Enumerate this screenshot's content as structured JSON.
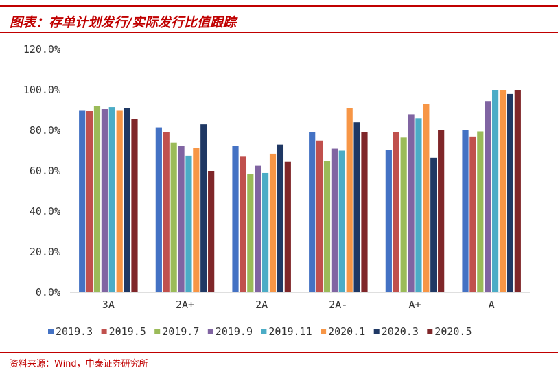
{
  "header": {
    "title": "图表：存单计划发行/实际发行比值跟踪"
  },
  "footer": {
    "source": "资料来源：Wind，中泰证券研究所"
  },
  "chart_data": {
    "type": "bar",
    "title": "图表：存单计划发行/实际发行比值跟踪",
    "xlabel": "",
    "ylabel": "",
    "ylim": [
      0,
      120
    ],
    "yticks": [
      "0.0%",
      "20.0%",
      "40.0%",
      "60.0%",
      "80.0%",
      "100.0%",
      "120.0%"
    ],
    "categories": [
      "3A",
      "2A+",
      "2A",
      "2A-",
      "A+",
      "A"
    ],
    "grid": false,
    "legend": "bottom",
    "series": [
      {
        "name": "2019.3",
        "color": "#4472c4",
        "values": [
          90.0,
          81.5,
          72.5,
          79.0,
          70.5,
          80.0
        ]
      },
      {
        "name": "2019.5",
        "color": "#c0504d",
        "values": [
          89.5,
          79.0,
          67.0,
          75.0,
          79.0,
          77.0
        ]
      },
      {
        "name": "2019.7",
        "color": "#9bbb59",
        "values": [
          92.0,
          74.0,
          58.5,
          65.0,
          76.5,
          79.5
        ]
      },
      {
        "name": "2019.9",
        "color": "#8064a2",
        "values": [
          90.5,
          72.5,
          62.5,
          71.0,
          88.0,
          94.5
        ]
      },
      {
        "name": "2019.11",
        "color": "#4bacc6",
        "values": [
          91.5,
          67.5,
          59.0,
          70.0,
          86.0,
          100.0
        ]
      },
      {
        "name": "2020.1",
        "color": "#f79646",
        "values": [
          90.0,
          71.5,
          68.5,
          91.0,
          93.0,
          100.0
        ]
      },
      {
        "name": "2020.3",
        "color": "#1f3864",
        "values": [
          91.0,
          83.0,
          73.0,
          84.0,
          66.5,
          98.0
        ]
      },
      {
        "name": "2020.5",
        "color": "#7f2629",
        "values": [
          85.5,
          60.0,
          64.5,
          79.0,
          80.0,
          100.0
        ]
      }
    ]
  }
}
